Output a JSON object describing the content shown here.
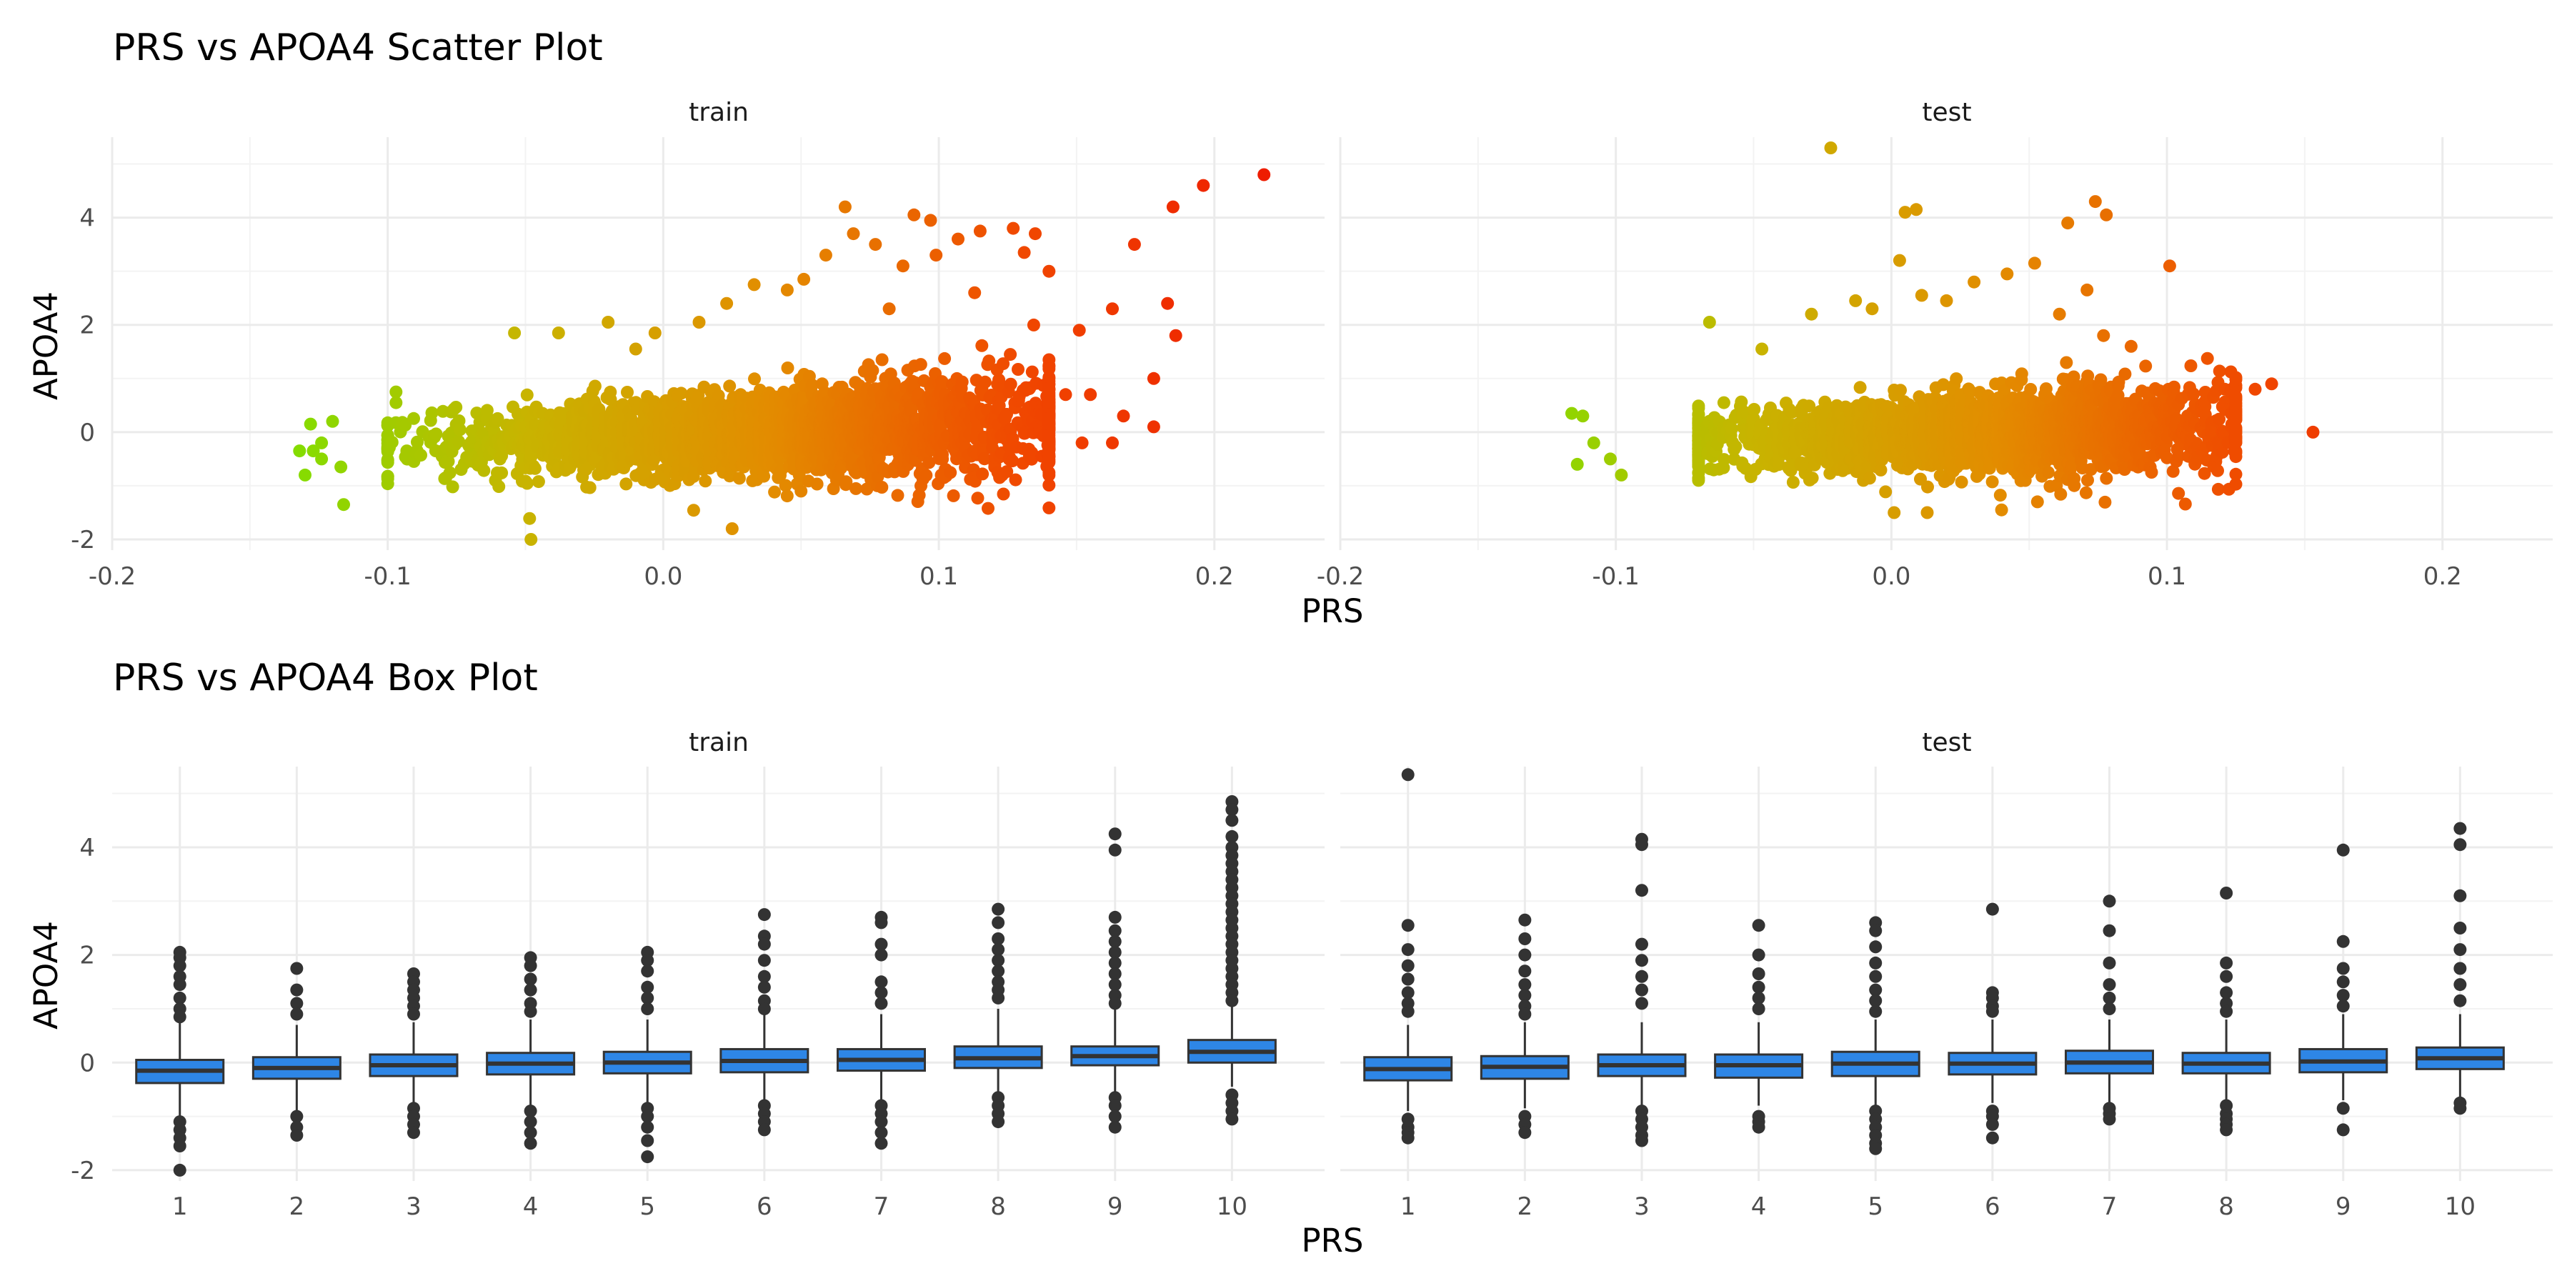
{
  "chart_data": [
    {
      "type": "scatter",
      "title": "PRS vs APOA4 Scatter Plot",
      "xlabel": "PRS",
      "ylabel": "APOA4",
      "xlim": [
        -0.2,
        0.24
      ],
      "ylim": [
        -2.2,
        5.5
      ],
      "x_ticks": [
        "-0.2",
        "-0.1",
        "0.0",
        "0.1",
        "0.2"
      ],
      "y_ticks": [
        "-2",
        "0",
        "2",
        "4"
      ],
      "grid": true,
      "color_gradient": [
        "#7fe000",
        "#c8b400",
        "#e38c00",
        "#f04800",
        "#ee1c00"
      ],
      "facets": [
        {
          "label": "train",
          "bulk": {
            "x_range": [
              -0.1,
              0.14
            ],
            "center_x": 0.04,
            "y_mean_at_center": 0.0,
            "y_spread": 0.35
          },
          "points": [
            [
              0.218,
              4.8
            ],
            [
              0.196,
              4.6
            ],
            [
              0.185,
              4.2
            ],
            [
              0.171,
              3.5
            ],
            [
              0.183,
              2.4
            ],
            [
              0.186,
              1.8
            ],
            [
              0.178,
              1.0
            ],
            [
              0.178,
              0.1
            ],
            [
              0.163,
              2.3
            ],
            [
              0.151,
              1.9
            ],
            [
              0.146,
              0.7
            ],
            [
              0.155,
              0.7
            ],
            [
              0.135,
              3.7
            ],
            [
              0.14,
              3.0
            ],
            [
              0.131,
              3.35
            ],
            [
              0.127,
              3.8
            ],
            [
              0.115,
              3.75
            ],
            [
              0.107,
              3.6
            ],
            [
              0.097,
              3.95
            ],
            [
              0.091,
              4.05
            ],
            [
              0.099,
              3.3
            ],
            [
              0.087,
              3.1
            ],
            [
              0.077,
              3.5
            ],
            [
              0.066,
              4.2
            ],
            [
              0.069,
              3.7
            ],
            [
              0.059,
              3.3
            ],
            [
              0.051,
              2.85
            ],
            [
              0.045,
              2.65
            ],
            [
              0.033,
              2.75
            ],
            [
              0.023,
              2.4
            ],
            [
              0.113,
              2.6
            ],
            [
              0.082,
              2.3
            ],
            [
              0.013,
              2.05
            ],
            [
              -0.003,
              1.85
            ],
            [
              -0.01,
              1.55
            ],
            [
              -0.02,
              2.05
            ],
            [
              -0.038,
              1.85
            ],
            [
              -0.054,
              1.85
            ],
            [
              -0.097,
              0.75
            ],
            [
              -0.097,
              0.55
            ],
            [
              -0.12,
              0.2
            ],
            [
              -0.124,
              -0.2
            ],
            [
              -0.128,
              0.15
            ],
            [
              -0.132,
              -0.35
            ],
            [
              -0.127,
              -0.35
            ],
            [
              -0.13,
              -0.8
            ],
            [
              -0.124,
              -0.5
            ],
            [
              -0.117,
              -0.65
            ],
            [
              -0.116,
              -1.35
            ],
            [
              -0.048,
              -2.0
            ],
            [
              0.025,
              -1.8
            ],
            [
              0.05,
              -1.1
            ],
            [
              0.123,
              -0.8
            ],
            [
              0.163,
              -0.2
            ],
            [
              0.167,
              0.3
            ],
            [
              0.152,
              -0.2
            ]
          ]
        },
        {
          "label": "test",
          "bulk": {
            "x_range": [
              -0.07,
              0.125
            ],
            "center_x": 0.03,
            "y_mean_at_center": 0.0,
            "y_spread": 0.3
          },
          "points": [
            [
              -0.022,
              5.3
            ],
            [
              0.005,
              4.1
            ],
            [
              0.009,
              4.15
            ],
            [
              0.003,
              3.2
            ],
            [
              0.074,
              4.3
            ],
            [
              0.078,
              4.05
            ],
            [
              0.064,
              3.9
            ],
            [
              0.101,
              3.1
            ],
            [
              0.052,
              3.15
            ],
            [
              0.042,
              2.95
            ],
            [
              0.03,
              2.8
            ],
            [
              0.02,
              2.45
            ],
            [
              0.011,
              2.55
            ],
            [
              0.061,
              2.2
            ],
            [
              0.071,
              2.65
            ],
            [
              0.077,
              1.8
            ],
            [
              0.087,
              1.6
            ],
            [
              -0.013,
              2.45
            ],
            [
              -0.007,
              2.3
            ],
            [
              -0.029,
              2.2
            ],
            [
              -0.066,
              2.05
            ],
            [
              -0.047,
              1.55
            ],
            [
              0.121,
              0.8
            ],
            [
              0.132,
              0.8
            ],
            [
              0.138,
              0.9
            ],
            [
              0.153,
              0.0
            ],
            [
              -0.116,
              0.35
            ],
            [
              -0.112,
              0.3
            ],
            [
              -0.108,
              -0.2
            ],
            [
              -0.114,
              -0.6
            ],
            [
              -0.102,
              -0.5
            ],
            [
              -0.098,
              -0.8
            ],
            [
              0.013,
              -1.5
            ],
            [
              0.001,
              -1.5
            ],
            [
              0.04,
              -1.45
            ],
            [
              0.053,
              -1.3
            ]
          ]
        }
      ]
    },
    {
      "type": "box",
      "title": "PRS vs APOA4 Box Plot",
      "xlabel": "PRS",
      "ylabel": "APOA4",
      "ylim": [
        -2.2,
        5.5
      ],
      "y_ticks": [
        "-2",
        "0",
        "2",
        "4"
      ],
      "grid": true,
      "fill": "#2e86e6",
      "categories": [
        "1",
        "2",
        "3",
        "4",
        "5",
        "6",
        "7",
        "8",
        "9",
        "10"
      ],
      "facets": [
        {
          "label": "train",
          "boxes": [
            {
              "q1": -0.38,
              "med": -0.15,
              "q3": 0.05,
              "lo": -1.0,
              "hi": 0.75,
              "outliers": [
                2.05,
                1.95,
                1.8,
                1.6,
                1.45,
                1.2,
                1.0,
                0.85,
                -1.1,
                -1.25,
                -1.4,
                -1.55,
                -2.0
              ]
            },
            {
              "q1": -0.3,
              "med": -0.1,
              "q3": 0.1,
              "lo": -0.9,
              "hi": 0.7,
              "outliers": [
                1.75,
                1.35,
                1.1,
                0.9,
                -1.0,
                -1.2,
                -1.35
              ]
            },
            {
              "q1": -0.25,
              "med": -0.05,
              "q3": 0.15,
              "lo": -0.8,
              "hi": 0.75,
              "outliers": [
                1.65,
                1.5,
                1.35,
                1.2,
                1.05,
                0.9,
                -0.85,
                -1.0,
                -1.15,
                -1.3
              ]
            },
            {
              "q1": -0.22,
              "med": -0.02,
              "q3": 0.18,
              "lo": -0.8,
              "hi": 0.8,
              "outliers": [
                1.95,
                1.8,
                1.55,
                1.35,
                1.1,
                0.95,
                -0.9,
                -1.1,
                -1.3,
                -1.5
              ]
            },
            {
              "q1": -0.2,
              "med": 0.0,
              "q3": 0.2,
              "lo": -0.75,
              "hi": 0.8,
              "outliers": [
                2.05,
                1.9,
                1.7,
                1.4,
                1.2,
                1.0,
                -0.85,
                -1.0,
                -1.2,
                -1.45,
                -1.75
              ]
            },
            {
              "q1": -0.18,
              "med": 0.03,
              "q3": 0.25,
              "lo": -0.75,
              "hi": 0.9,
              "outliers": [
                2.75,
                2.35,
                2.2,
                1.9,
                1.6,
                1.4,
                1.15,
                1.0,
                -0.8,
                -0.95,
                -1.1,
                -1.25
              ]
            },
            {
              "q1": -0.15,
              "med": 0.05,
              "q3": 0.25,
              "lo": -0.7,
              "hi": 0.9,
              "outliers": [
                2.7,
                2.6,
                2.2,
                2.0,
                1.5,
                1.3,
                1.1,
                -0.8,
                -0.95,
                -1.1,
                -1.3,
                -1.5
              ]
            },
            {
              "q1": -0.1,
              "med": 0.08,
              "q3": 0.3,
              "lo": -0.6,
              "hi": 1.0,
              "outliers": [
                2.85,
                2.6,
                2.3,
                2.1,
                1.9,
                1.7,
                1.5,
                1.35,
                1.2,
                -0.65,
                -0.8,
                -0.95,
                -1.1
              ]
            },
            {
              "q1": -0.05,
              "med": 0.12,
              "q3": 0.3,
              "lo": -0.55,
              "hi": 1.0,
              "outliers": [
                4.25,
                3.95,
                2.7,
                2.45,
                2.25,
                2.05,
                1.85,
                1.65,
                1.45,
                1.25,
                1.1,
                -0.65,
                -0.8,
                -1.0,
                -1.2
              ]
            },
            {
              "q1": 0.0,
              "med": 0.2,
              "q3": 0.42,
              "lo": -0.45,
              "hi": 1.1,
              "outliers": [
                4.85,
                4.7,
                4.5,
                4.2,
                4.0,
                3.85,
                3.7,
                3.55,
                3.4,
                3.25,
                3.1,
                2.95,
                2.8,
                2.65,
                2.5,
                2.35,
                2.2,
                2.05,
                1.9,
                1.75,
                1.6,
                1.45,
                1.3,
                1.15,
                -0.6,
                -0.75,
                -0.9,
                -1.05
              ]
            }
          ]
        },
        {
          "label": "test",
          "boxes": [
            {
              "q1": -0.33,
              "med": -0.12,
              "q3": 0.1,
              "lo": -0.9,
              "hi": 0.7,
              "outliers": [
                5.35,
                2.55,
                2.1,
                1.8,
                1.55,
                1.3,
                1.1,
                0.95,
                -1.05,
                -1.2,
                -1.3,
                -1.4
              ]
            },
            {
              "q1": -0.3,
              "med": -0.08,
              "q3": 0.12,
              "lo": -0.85,
              "hi": 0.75,
              "outliers": [
                2.65,
                2.3,
                2.0,
                1.7,
                1.45,
                1.25,
                1.05,
                0.9,
                -1.0,
                -1.15,
                -1.3
              ]
            },
            {
              "q1": -0.25,
              "med": -0.05,
              "q3": 0.15,
              "lo": -0.8,
              "hi": 0.75,
              "outliers": [
                4.15,
                4.05,
                3.2,
                2.2,
                1.9,
                1.6,
                1.35,
                1.1,
                -0.9,
                -1.05,
                -1.2,
                -1.35,
                -1.45
              ]
            },
            {
              "q1": -0.28,
              "med": -0.05,
              "q3": 0.15,
              "lo": -0.8,
              "hi": 0.75,
              "outliers": [
                2.55,
                2.0,
                1.65,
                1.4,
                1.2,
                1.0,
                -1.0,
                -1.1,
                -1.2
              ]
            },
            {
              "q1": -0.25,
              "med": -0.02,
              "q3": 0.2,
              "lo": -0.8,
              "hi": 0.8,
              "outliers": [
                2.6,
                2.45,
                2.15,
                1.85,
                1.6,
                1.35,
                1.15,
                0.95,
                -0.9,
                -1.05,
                -1.2,
                -1.35,
                -1.5,
                -1.6
              ]
            },
            {
              "q1": -0.22,
              "med": -0.02,
              "q3": 0.18,
              "lo": -0.75,
              "hi": 0.8,
              "outliers": [
                2.85,
                1.3,
                1.2,
                1.05,
                0.95,
                -0.9,
                -1.0,
                -1.15,
                -1.4
              ]
            },
            {
              "q1": -0.2,
              "med": 0.0,
              "q3": 0.22,
              "lo": -0.75,
              "hi": 0.8,
              "outliers": [
                3.0,
                2.45,
                1.85,
                1.45,
                1.2,
                1.0,
                -0.85,
                -0.95,
                -1.05
              ]
            },
            {
              "q1": -0.2,
              "med": -0.02,
              "q3": 0.18,
              "lo": -0.75,
              "hi": 0.8,
              "outliers": [
                3.15,
                1.85,
                1.6,
                1.3,
                1.1,
                0.95,
                -0.8,
                -0.95,
                -1.05,
                -1.15,
                -1.25
              ]
            },
            {
              "q1": -0.18,
              "med": 0.02,
              "q3": 0.25,
              "lo": -0.7,
              "hi": 0.9,
              "outliers": [
                3.95,
                2.25,
                1.75,
                1.5,
                1.25,
                1.05,
                -0.85,
                -1.25
              ]
            },
            {
              "q1": -0.12,
              "med": 0.08,
              "q3": 0.28,
              "lo": -0.65,
              "hi": 0.9,
              "outliers": [
                4.35,
                4.05,
                3.1,
                2.5,
                2.1,
                1.75,
                1.45,
                1.15,
                -0.75,
                -0.85
              ]
            }
          ]
        }
      ]
    }
  ]
}
